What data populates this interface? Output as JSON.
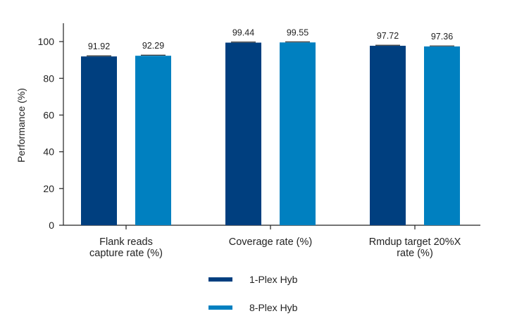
{
  "chart_data": {
    "type": "bar",
    "ylabel": "Performance (%)",
    "ylim": [
      0,
      110
    ],
    "yticks": [
      0,
      20,
      40,
      60,
      80,
      100
    ],
    "categories": [
      [
        "Flank reads",
        "capture rate (%)"
      ],
      [
        "Coverage rate (%)"
      ],
      [
        "Rmdup target 20%X",
        "rate (%)"
      ]
    ],
    "series": [
      {
        "name": "1-Plex Hyb",
        "color": "#003f7f",
        "values": [
          91.92,
          99.44,
          97.72
        ],
        "labels": [
          "91.92",
          "99.44",
          "97.72"
        ]
      },
      {
        "name": "8-Plex Hyb",
        "color": "#0080c0",
        "values": [
          92.29,
          99.55,
          97.36
        ],
        "labels": [
          "92.29",
          "99.55",
          "97.36"
        ]
      }
    ],
    "error_bars": true,
    "legend_position": "bottom",
    "grid": false
  }
}
